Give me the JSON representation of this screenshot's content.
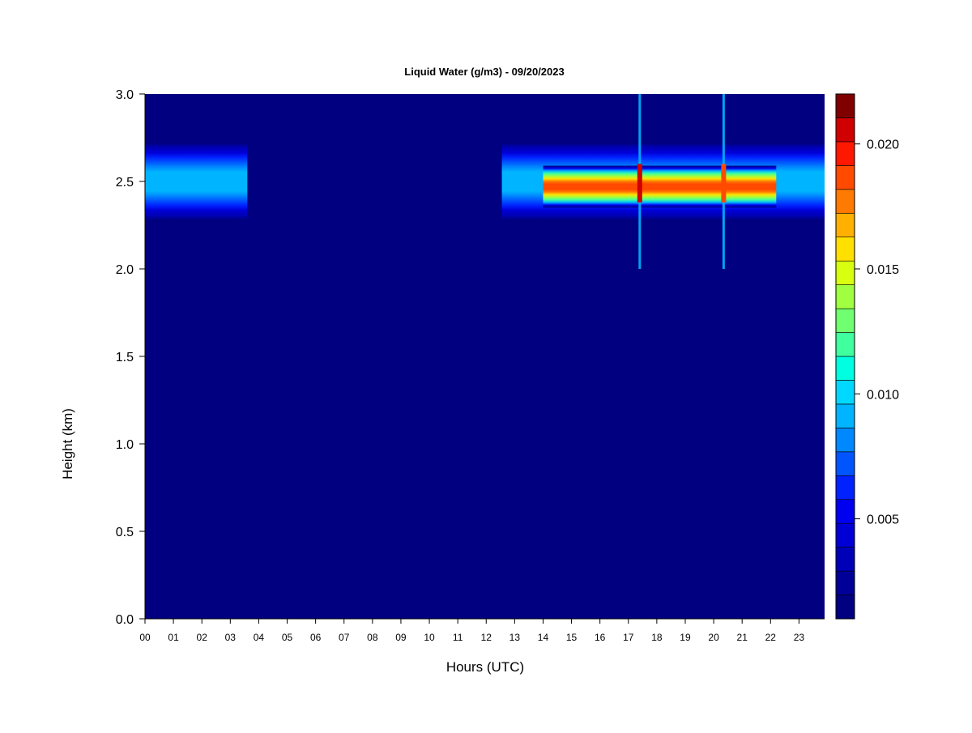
{
  "chart_data": {
    "type": "heatmap",
    "title": "Liquid Water (g/m3) - 09/20/2023",
    "xlabel": "Hours (UTC)",
    "ylabel": "Height (km)",
    "x_ticks": [
      "00",
      "01",
      "02",
      "03",
      "04",
      "05",
      "06",
      "07",
      "08",
      "09",
      "10",
      "11",
      "12",
      "13",
      "14",
      "15",
      "16",
      "17",
      "18",
      "19",
      "20",
      "21",
      "22",
      "23"
    ],
    "xlim": [
      0,
      23.9
    ],
    "y_ticks": [
      "0.0",
      "0.5",
      "1.0",
      "1.5",
      "2.0",
      "2.5",
      "3.0"
    ],
    "ylim": [
      0.0,
      3.0
    ],
    "colorbar": {
      "range": [
        0.001,
        0.022
      ],
      "levels": 21,
      "tick_labels": [
        "0.005",
        "0.010",
        "0.015",
        "0.020"
      ],
      "tick_values": [
        0.005,
        0.01,
        0.015,
        0.02
      ],
      "colors": [
        "#000080",
        "#000099",
        "#0000b8",
        "#0000d6",
        "#0000f0",
        "#0022ff",
        "#0055ff",
        "#0088ff",
        "#00b4ff",
        "#00d8ff",
        "#00ffe0",
        "#40ff9f",
        "#70ff70",
        "#a0ff40",
        "#d8ff10",
        "#ffe000",
        "#ffb000",
        "#ff7a00",
        "#ff4a00",
        "#ff1800",
        "#d00000",
        "#800000"
      ]
    },
    "background_value": 0.001,
    "cloud_layers": [
      {
        "x_start": 0.0,
        "x_end": 3.6,
        "height_center": 2.5,
        "half_thickness": 0.22,
        "peak_value": 0.0095
      },
      {
        "x_start": 12.55,
        "x_end": 23.9,
        "height_center": 2.5,
        "half_thickness": 0.22,
        "peak_value": 0.0095
      },
      {
        "x_start": 14.0,
        "x_end": 22.2,
        "height_center": 2.47,
        "half_thickness": 0.12,
        "peak_value": 0.0185
      }
    ],
    "spikes": [
      {
        "x": 17.4,
        "peak_value": 0.0205
      },
      {
        "x": 20.35,
        "peak_value": 0.0185
      }
    ],
    "color_ramp_legend": "blue-to-red"
  }
}
